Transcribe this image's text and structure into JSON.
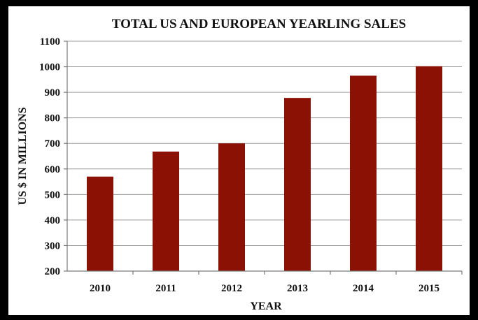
{
  "colors": {
    "bar": "#8B1105",
    "frame": "#000000",
    "background": "#ffffff"
  },
  "chart_data": {
    "type": "bar",
    "title": "TOTAL US AND EUROPEAN YEARLING SALES",
    "xlabel": "YEAR",
    "ylabel": "US $ IN MILLIONS",
    "categories": [
      "2010",
      "2011",
      "2012",
      "2013",
      "2014",
      "2015"
    ],
    "values": [
      570,
      668,
      700,
      878,
      965,
      1002
    ],
    "ylim": [
      200,
      1100
    ],
    "yticks": [
      200,
      300,
      400,
      500,
      600,
      700,
      800,
      900,
      1000,
      1100
    ],
    "grid": true,
    "legend": "none"
  }
}
